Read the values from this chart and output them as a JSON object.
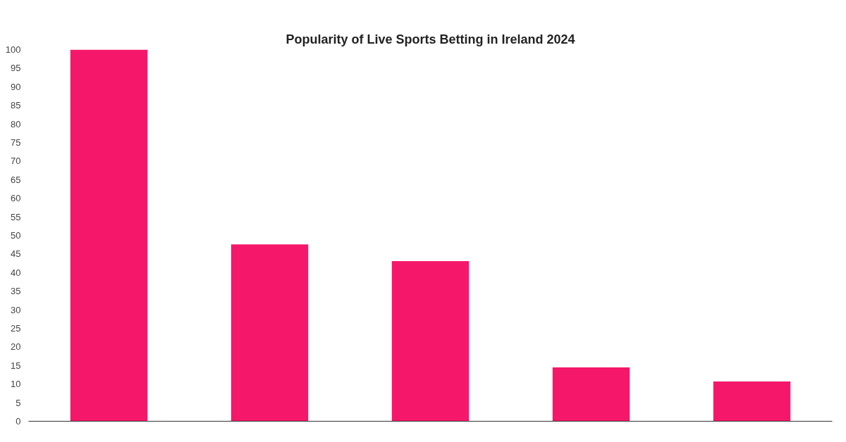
{
  "chart_data": {
    "type": "bar",
    "title": "Popularity of Live Sports Betting in Ireland 2024",
    "categories": [
      null,
      null,
      null,
      null,
      null
    ],
    "values": [
      100,
      47.6,
      43.1,
      14.5,
      10.7
    ],
    "color": "#f5186a",
    "ylim": [
      0,
      100
    ],
    "yticks": [
      0,
      5,
      10,
      15,
      20,
      25,
      30,
      35,
      40,
      45,
      50,
      55,
      60,
      65,
      70,
      75,
      80,
      85,
      90,
      95,
      100
    ],
    "grid": false
  }
}
